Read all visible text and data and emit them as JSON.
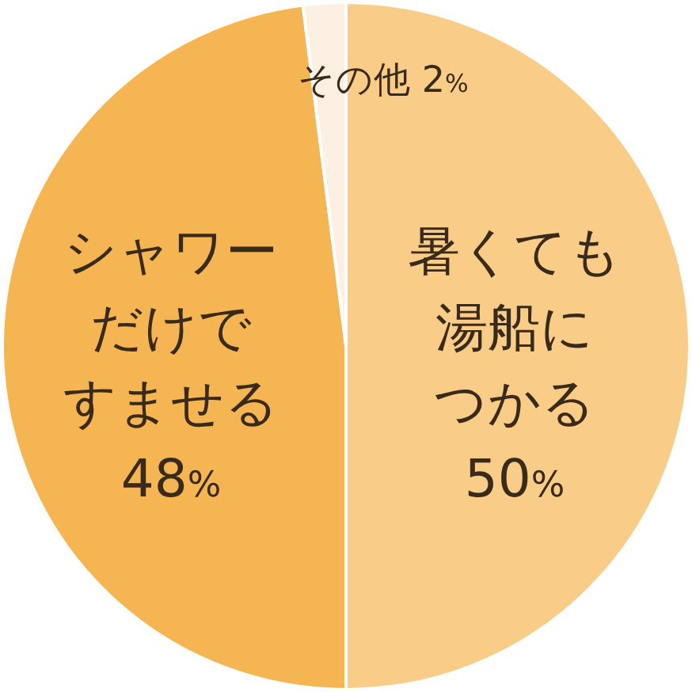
{
  "chart_data": {
    "type": "pie",
    "categories": [
      "暑くても湯船につかる",
      "シャワーだけですませる",
      "その他"
    ],
    "values": [
      50,
      48,
      2
    ],
    "colors": [
      "#f9cc88",
      "#f5b553",
      "#fcf0e2"
    ],
    "value_labels": [
      "50%",
      "48%",
      "2%"
    ]
  }
}
